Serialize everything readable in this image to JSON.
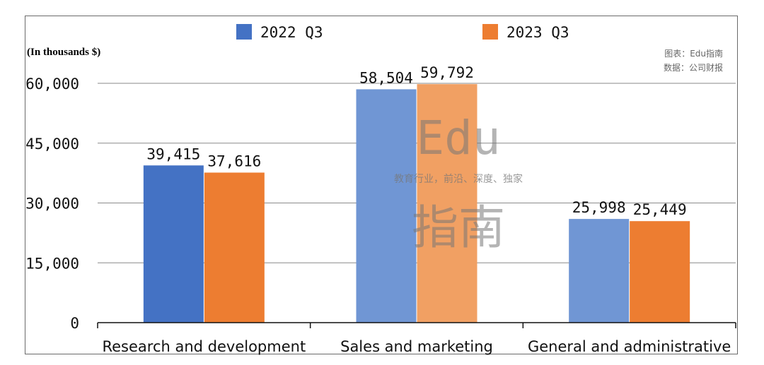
{
  "chart_data": {
    "type": "bar",
    "categories": [
      "Research and development",
      "Sales and marketing",
      "General and administrative"
    ],
    "series": [
      {
        "name": "2022 Q3",
        "values": [
          39415,
          58504,
          25998
        ],
        "color": "#4472C4",
        "data_labels": [
          "39,415",
          "58,504",
          "25,998"
        ]
      },
      {
        "name": "2023 Q3",
        "values": [
          37616,
          59792,
          25449
        ],
        "color": "#ED7D31",
        "data_labels": [
          "37,616",
          "59,792",
          "25,449"
        ]
      }
    ],
    "title": "",
    "xlabel": "",
    "ylabel": "",
    "unit_label": "(In thousands $)",
    "ylim": [
      0,
      60000
    ],
    "yticks": [
      0,
      15000,
      30000,
      45000,
      60000
    ],
    "ytick_labels": [
      "0",
      "15,000",
      "30,000",
      "45,000",
      "60,000"
    ],
    "grid": true,
    "legend_position": "top"
  },
  "source": {
    "chart_credit": "图表：Edu指南",
    "data_credit": "数据：公司财报"
  },
  "watermark": {
    "logo_top": "Edu",
    "tagline": "教育行业，前沿、深度、独家",
    "logo_bottom": "指南"
  }
}
